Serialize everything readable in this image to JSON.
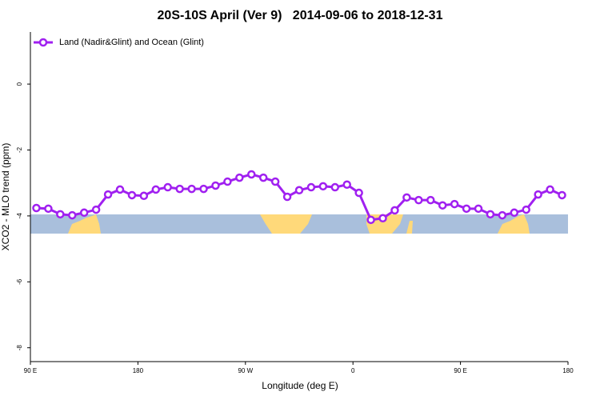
{
  "chart_data": {
    "type": "line",
    "title": "20S-10S April (Ver 9)   2014-09-06 to 2018-12-31",
    "xlabel": "Longitude (deg E)",
    "ylabel": "XCO2 - MLO trend (ppm)",
    "x": [
      95,
      105,
      115,
      125,
      135,
      145,
      155,
      165,
      175,
      185,
      195,
      205,
      215,
      225,
      235,
      245,
      255,
      265,
      275,
      285,
      295,
      305,
      315,
      325,
      335,
      345,
      355,
      365,
      375,
      385,
      395,
      405,
      415,
      425,
      435,
      445,
      455,
      465,
      475,
      485,
      495,
      505,
      515,
      525,
      535
    ],
    "series": [
      {
        "name": "Land (Nadir&Glint) and Ocean (Glint)",
        "color": "#a020f0",
        "values": [
          -3.76,
          -3.78,
          -3.95,
          -3.98,
          -3.9,
          -3.81,
          -3.35,
          -3.2,
          -3.37,
          -3.39,
          -3.2,
          -3.13,
          -3.18,
          -3.18,
          -3.18,
          -3.08,
          -2.96,
          -2.84,
          -2.74,
          -2.84,
          -2.96,
          -3.42,
          -3.22,
          -3.13,
          -3.1,
          -3.13,
          -3.05,
          -3.3,
          -4.12,
          -4.07,
          -3.83,
          -3.44,
          -3.52,
          -3.52,
          -3.68,
          -3.64,
          -3.78,
          -3.78,
          -3.95,
          -3.98,
          -3.9,
          -3.81,
          -3.35,
          -3.2,
          -3.37
        ]
      }
    ],
    "xlim": [
      90,
      540
    ],
    "xticks": [
      {
        "value": 90,
        "label": "90 E"
      },
      {
        "value": 180,
        "label": "180"
      },
      {
        "value": 270,
        "label": "90 W"
      },
      {
        "value": 360,
        "label": "0"
      },
      {
        "value": 450,
        "label": "90 E"
      },
      {
        "value": 540,
        "label": "180"
      }
    ],
    "ylim": [
      -8.42,
      1.58
    ],
    "yticks": [
      0,
      -2,
      -4,
      -6,
      -8
    ],
    "legend": "top-left"
  }
}
